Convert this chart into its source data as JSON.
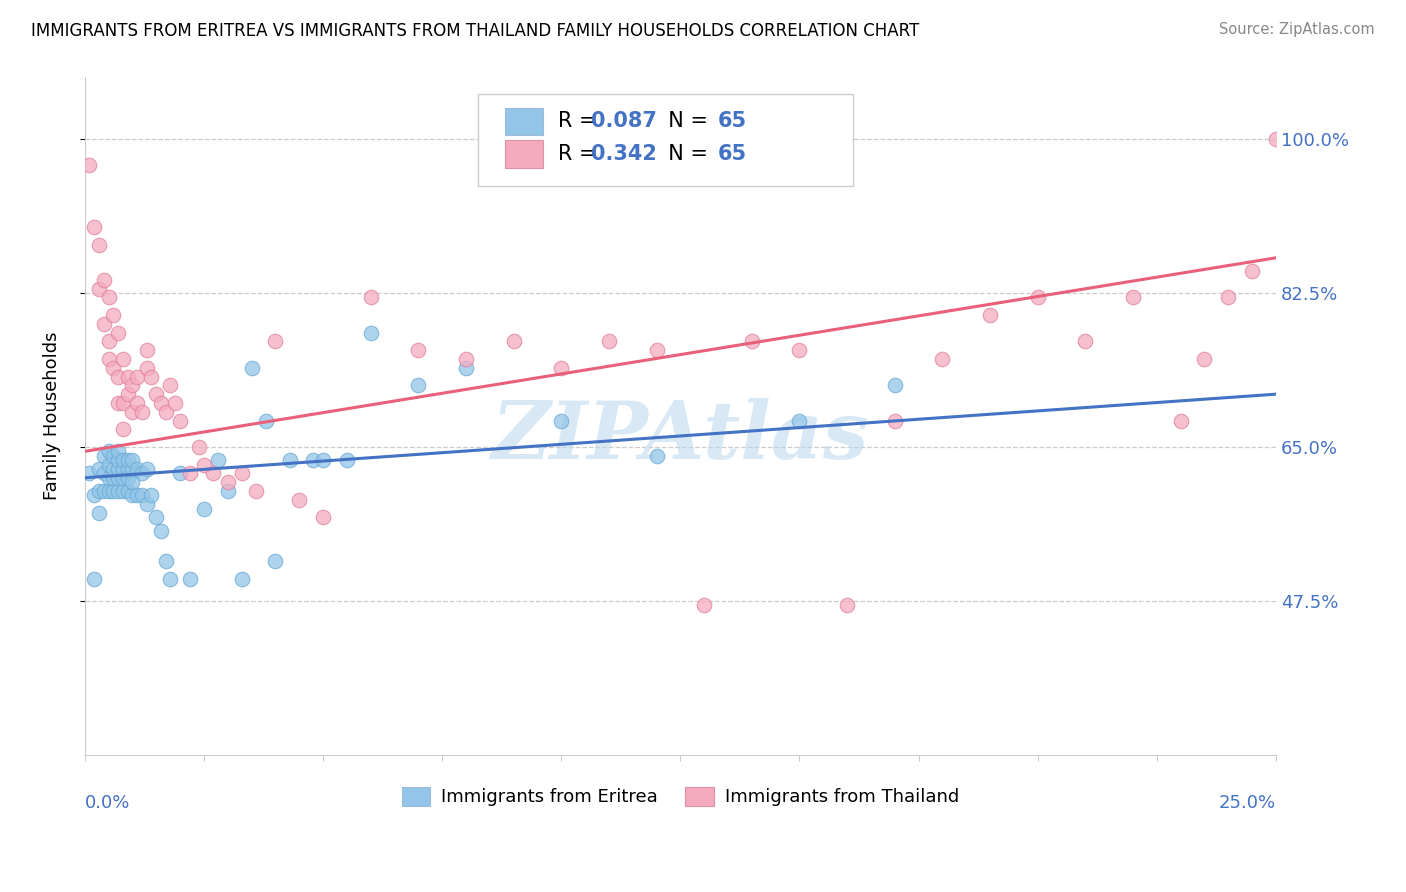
{
  "title": "IMMIGRANTS FROM ERITREA VS IMMIGRANTS FROM THAILAND FAMILY HOUSEHOLDS CORRELATION CHART",
  "source": "Source: ZipAtlas.com",
  "ylabel": "Family Households",
  "yticks": [
    0.475,
    0.65,
    0.825,
    1.0
  ],
  "ytick_labels": [
    "47.5%",
    "65.0%",
    "82.5%",
    "100.0%"
  ],
  "legend_eritrea": "Immigrants from Eritrea",
  "legend_thailand": "Immigrants from Thailand",
  "r_eritrea": "0.087",
  "n_eritrea": "65",
  "r_thailand": "0.342",
  "n_thailand": "65",
  "color_eritrea": "#92C5E8",
  "color_eritrea_edge": "#6AAAD4",
  "color_thailand": "#F4ABBE",
  "color_thailand_edge": "#E080A0",
  "trendline_eritrea_color": "#4472C4",
  "trendline_thailand_color": "#E8607A",
  "watermark": "ZIPAtlas",
  "watermark_color": "#B8D8EE",
  "background_color": "#FFFFFF",
  "x_min": 0.0,
  "x_max": 0.25,
  "y_min": 0.3,
  "y_max": 1.07,
  "eritrea_x": [
    0.001,
    0.002,
    0.002,
    0.003,
    0.003,
    0.003,
    0.004,
    0.004,
    0.004,
    0.005,
    0.005,
    0.005,
    0.005,
    0.006,
    0.006,
    0.006,
    0.006,
    0.007,
    0.007,
    0.007,
    0.007,
    0.007,
    0.008,
    0.008,
    0.008,
    0.008,
    0.009,
    0.009,
    0.009,
    0.009,
    0.01,
    0.01,
    0.01,
    0.01,
    0.011,
    0.011,
    0.012,
    0.012,
    0.013,
    0.013,
    0.014,
    0.015,
    0.016,
    0.017,
    0.018,
    0.02,
    0.022,
    0.025,
    0.028,
    0.03,
    0.033,
    0.035,
    0.038,
    0.04,
    0.043,
    0.048,
    0.05,
    0.055,
    0.06,
    0.07,
    0.08,
    0.1,
    0.12,
    0.15,
    0.17
  ],
  "eritrea_y": [
    0.62,
    0.5,
    0.595,
    0.575,
    0.6,
    0.625,
    0.6,
    0.62,
    0.64,
    0.6,
    0.615,
    0.63,
    0.645,
    0.6,
    0.615,
    0.625,
    0.64,
    0.6,
    0.615,
    0.625,
    0.635,
    0.645,
    0.6,
    0.615,
    0.625,
    0.635,
    0.6,
    0.615,
    0.625,
    0.635,
    0.595,
    0.61,
    0.625,
    0.635,
    0.595,
    0.625,
    0.595,
    0.62,
    0.585,
    0.625,
    0.595,
    0.57,
    0.555,
    0.52,
    0.5,
    0.62,
    0.5,
    0.58,
    0.635,
    0.6,
    0.5,
    0.74,
    0.68,
    0.52,
    0.635,
    0.635,
    0.635,
    0.635,
    0.78,
    0.72,
    0.74,
    0.68,
    0.64,
    0.68,
    0.72
  ],
  "thailand_x": [
    0.001,
    0.002,
    0.003,
    0.003,
    0.004,
    0.004,
    0.005,
    0.005,
    0.005,
    0.006,
    0.006,
    0.007,
    0.007,
    0.007,
    0.008,
    0.008,
    0.008,
    0.009,
    0.009,
    0.01,
    0.01,
    0.011,
    0.011,
    0.012,
    0.013,
    0.013,
    0.014,
    0.015,
    0.016,
    0.017,
    0.018,
    0.019,
    0.02,
    0.022,
    0.024,
    0.025,
    0.027,
    0.03,
    0.033,
    0.036,
    0.04,
    0.045,
    0.05,
    0.06,
    0.07,
    0.08,
    0.09,
    0.1,
    0.11,
    0.12,
    0.13,
    0.14,
    0.15,
    0.16,
    0.17,
    0.18,
    0.19,
    0.2,
    0.21,
    0.22,
    0.23,
    0.235,
    0.24,
    0.245,
    0.25
  ],
  "thailand_y": [
    0.97,
    0.9,
    0.88,
    0.83,
    0.84,
    0.79,
    0.82,
    0.77,
    0.75,
    0.8,
    0.74,
    0.78,
    0.73,
    0.7,
    0.75,
    0.7,
    0.67,
    0.73,
    0.71,
    0.72,
    0.69,
    0.73,
    0.7,
    0.69,
    0.76,
    0.74,
    0.73,
    0.71,
    0.7,
    0.69,
    0.72,
    0.7,
    0.68,
    0.62,
    0.65,
    0.63,
    0.62,
    0.61,
    0.62,
    0.6,
    0.77,
    0.59,
    0.57,
    0.82,
    0.76,
    0.75,
    0.77,
    0.74,
    0.77,
    0.76,
    0.47,
    0.77,
    0.76,
    0.47,
    0.68,
    0.75,
    0.8,
    0.82,
    0.77,
    0.82,
    0.68,
    0.75,
    0.82,
    0.85,
    1.0
  ],
  "trendline_eritrea_x0": 0.0,
  "trendline_eritrea_y0": 0.615,
  "trendline_eritrea_x1": 0.25,
  "trendline_eritrea_y1": 0.71,
  "trendline_thailand_x0": 0.0,
  "trendline_thailand_y0": 0.645,
  "trendline_thailand_x1": 0.25,
  "trendline_thailand_y1": 0.865
}
